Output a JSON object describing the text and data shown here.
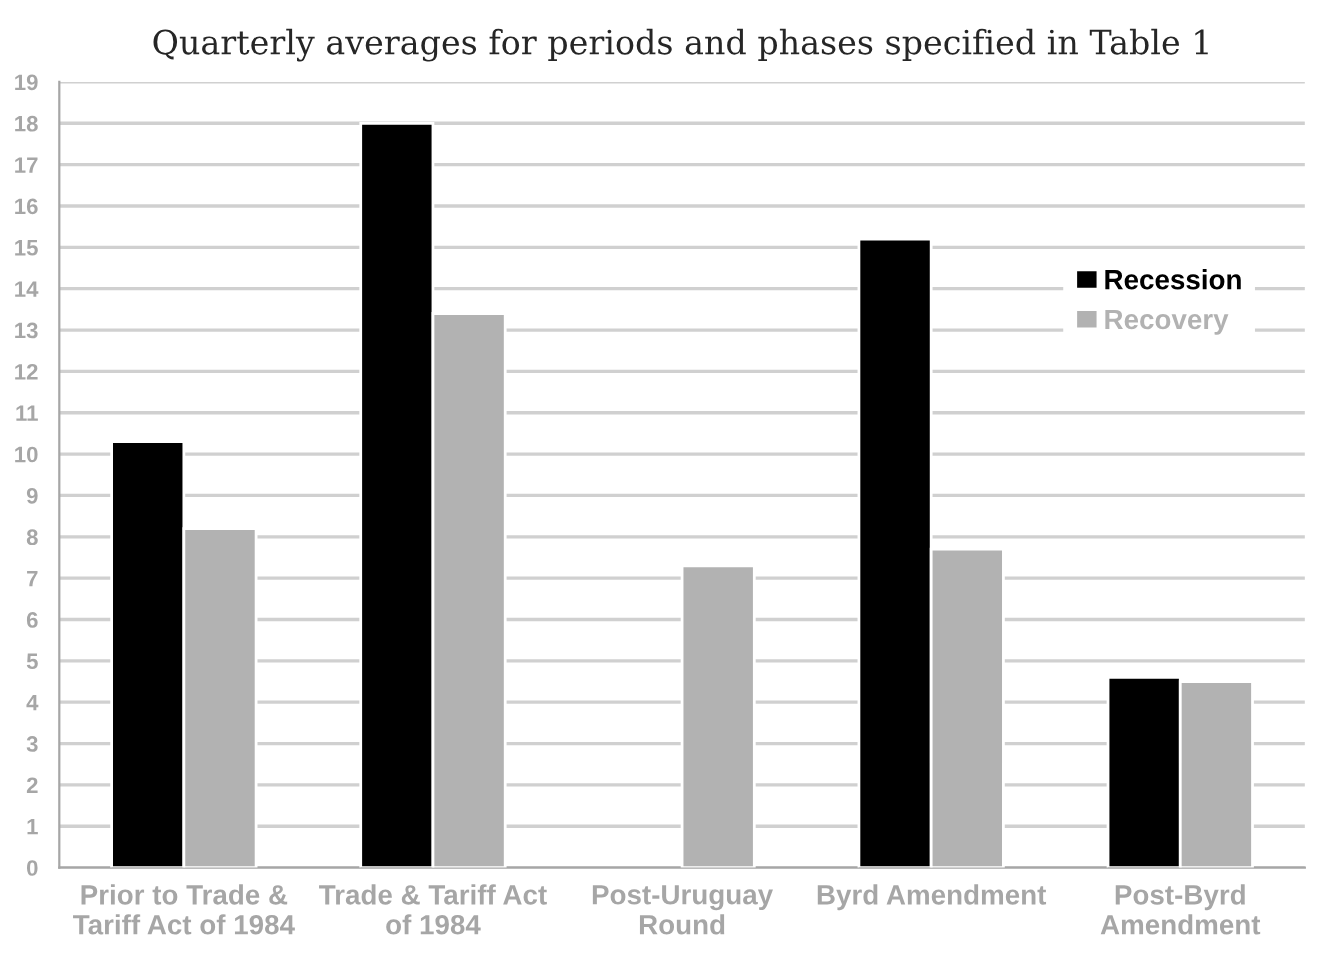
{
  "chart_data": {
    "type": "bar",
    "title": "Quarterly averages for periods and phases specified in Table 1",
    "categories": [
      "Prior to Trade & Tariff Act of 1984",
      "Trade & Tariff Act of 1984",
      "Post-Uruguay Round",
      "Byrd Amendment",
      "Post-Byrd Amendment"
    ],
    "series": [
      {
        "name": "Recession",
        "color": "#000000",
        "values": [
          10.3,
          18.0,
          null,
          15.2,
          4.6
        ]
      },
      {
        "name": "Recovery",
        "color": "#b2b2b2",
        "values": [
          8.2,
          13.4,
          7.3,
          7.7,
          4.5
        ]
      }
    ],
    "ylim": [
      0,
      19
    ],
    "yticks": [
      0,
      1,
      2,
      3,
      4,
      5,
      6,
      7,
      8,
      9,
      10,
      11,
      12,
      13,
      14,
      15,
      16,
      17,
      18,
      19
    ],
    "grid": "y",
    "legend": "right"
  }
}
